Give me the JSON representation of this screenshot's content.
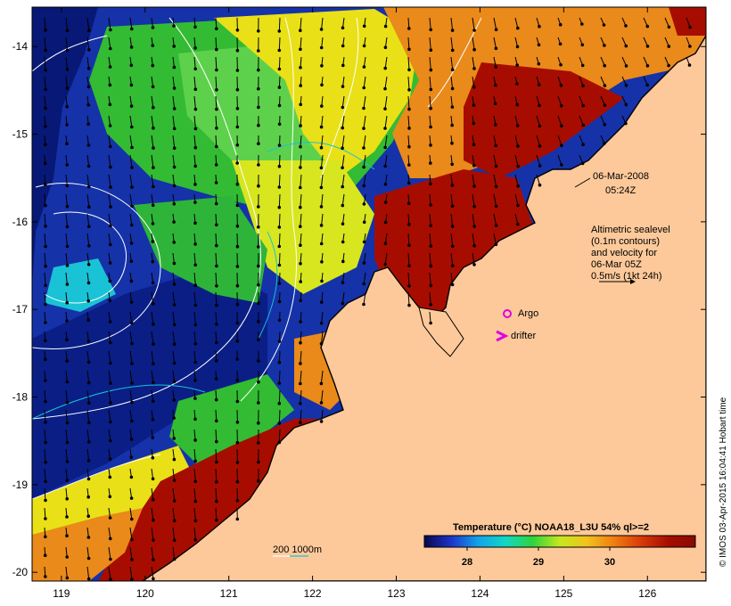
{
  "map": {
    "x_ticks": [
      "119",
      "120",
      "121",
      "122",
      "123",
      "124",
      "125",
      "126"
    ],
    "y_ticks": [
      "-14",
      "-15",
      "-16",
      "-17",
      "-18",
      "-19",
      "-20"
    ],
    "lon_range": [
      118.65,
      126.7
    ],
    "lat_range": [
      -20.1,
      -13.55
    ],
    "colors": {
      "land": "#fdc99a",
      "coast": "#000000",
      "warm": "#a60d00",
      "hot": "#cc2a05",
      "orange": "#e98a1a",
      "yellow": "#e9e017",
      "green": "#33bb33",
      "mid_green": "#5ed14c",
      "cyan": "#19c3d5",
      "blue": "#1532a8",
      "deep_blue": "#081876",
      "contour": "#ffffff",
      "argo": "#e100e1"
    }
  },
  "timestamp": {
    "date": "06-Mar-2008",
    "time": "05:24Z"
  },
  "altimetry_note": {
    "line1": "Altimetric sealevel",
    "line2": "(0.1m contours)",
    "line3": "and velocity for",
    "line4": "06-Mar 05Z",
    "line5": "0.5m/s (1kt 24h)"
  },
  "legend": {
    "argo_label": "Argo",
    "drifter_label": "drifter",
    "isobath_label": "200  1000m"
  },
  "colorbar": {
    "title": "Temperature (°C) NOAA18_L3U 54% ql>=2",
    "tick_labels": [
      "28",
      "29",
      "30"
    ],
    "colors": [
      "#08084c",
      "#1d35c9",
      "#13a4e8",
      "#12d7c4",
      "#2fd33c",
      "#c4e81f",
      "#f2c21c",
      "#ef7d12",
      "#d83a0b",
      "#a60d00",
      "#8a0a00"
    ]
  },
  "credit": "© IMOS 03-Apr-2015 16:04:41 Hobart time"
}
